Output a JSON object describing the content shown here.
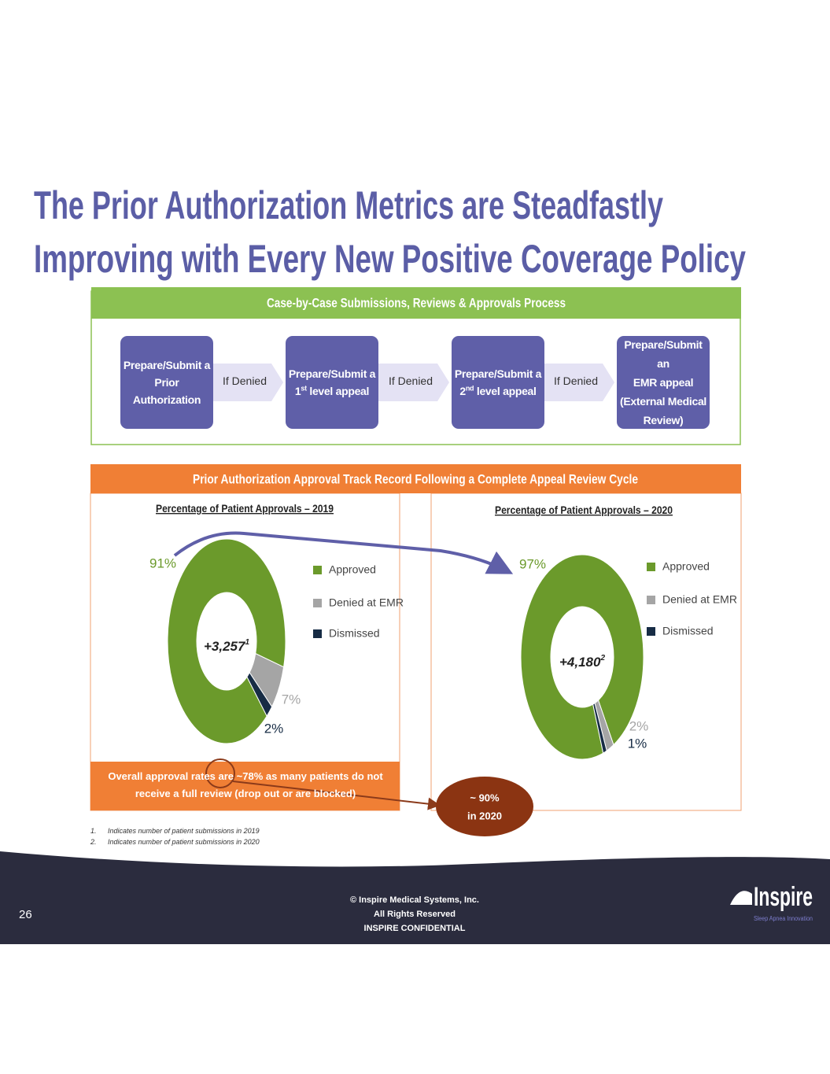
{
  "title_lines": [
    "The Prior Authorization Metrics are Steadfastly",
    "Improving with Every New Positive Coverage Policy"
  ],
  "process": {
    "title": "Case-by-Case Submissions, Reviews & Approvals Process",
    "steps": [
      [
        [
          "Prepare/Submit a"
        ],
        [
          "Prior Authorization"
        ]
      ],
      [
        [
          "Prepare/Submit a"
        ],
        [
          "1",
          "st",
          " level appeal"
        ]
      ],
      [
        [
          "Prepare/Submit a"
        ],
        [
          "2",
          "nd",
          " level appeal"
        ]
      ],
      [
        [
          "Prepare/Submit an"
        ],
        [
          "EMR appeal"
        ],
        [
          "(External Medical"
        ],
        [
          "Review)"
        ]
      ]
    ],
    "connectors": [
      "If Denied",
      "If Denied",
      "If Denied"
    ]
  },
  "track_record": {
    "title": "Prior Authorization Approval Track Record Following a Complete Appeal Review Cycle",
    "note": "Overall approval rates are ~78% as many patients do not receive a full review (drop out or are blocked)",
    "callout": [
      "~ 90%",
      "in 2020"
    ]
  },
  "chart_data": [
    {
      "type": "pie",
      "donut": true,
      "title": "Percentage of Patient Approvals – 2019",
      "categories": [
        "Approved",
        "Denied at EMR",
        "Dismissed"
      ],
      "values": [
        91,
        7,
        2
      ],
      "value_labels": [
        "91%",
        "7%",
        "2%"
      ],
      "colors": [
        "#6b9a2b",
        "#a5a5a5",
        "#172c45"
      ],
      "center_label": "+3,257",
      "center_note": "1"
    },
    {
      "type": "pie",
      "donut": true,
      "title": "Percentage of Patient Approvals – 2020",
      "categories": [
        "Approved",
        "Denied at EMR",
        "Dismissed"
      ],
      "values": [
        97,
        2,
        1
      ],
      "value_labels": [
        "97%",
        "2%",
        "1%"
      ],
      "colors": [
        "#6b9a2b",
        "#a5a5a5",
        "#172c45"
      ],
      "center_label": "+4,180",
      "center_note": "2"
    }
  ],
  "footnotes": [
    {
      "marker": "1.",
      "text": "Indicates number of patient submissions in 2019"
    },
    {
      "marker": "2.",
      "text": "Indicates number of patient submissions in 2020"
    }
  ],
  "footer": {
    "page": "26",
    "copyright": [
      "© Inspire Medical Systems, Inc.",
      "All Rights Reserved",
      "INSPIRE CONFIDENTIAL"
    ],
    "logo": "Inspire",
    "tagline": "Sleep Apnea Innovation"
  }
}
